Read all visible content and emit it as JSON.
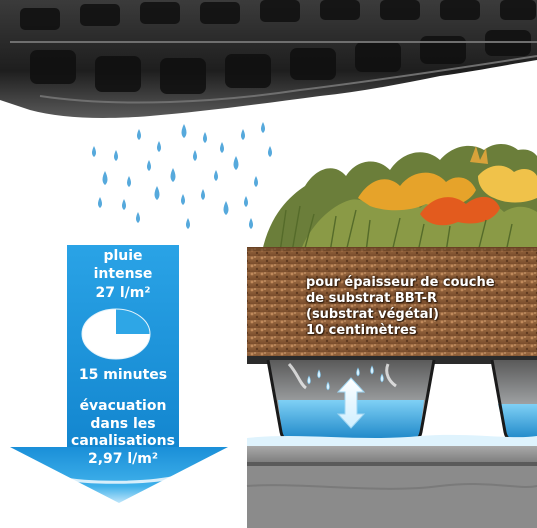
{
  "colors": {
    "accent_blue": "#1e96dc",
    "water_blue": "#3aa8e3",
    "raindrop_blue": "#56a9dc",
    "soil_brown": "#8a5a36",
    "tray_black": "#2b2b2b",
    "slab_grey": "#8f8f8f",
    "label_white": "#ffffff"
  },
  "rain_panel": {
    "line1": "pluie",
    "line2": "intense",
    "amount": "27 l/m²",
    "duration": "15 minutes",
    "pie_icon": "pie-chart-icon",
    "drain_line1": "évacuation",
    "drain_line2": "dans les",
    "drain_line3": "canalisations",
    "drain_amount": "2,97 l/m²"
  },
  "substrate_label": {
    "line1": "pour épaisseur de couche",
    "line2": "de substrat BBT-R",
    "line3": "(substrat végétal)",
    "line4": "10 centimètres"
  },
  "icons": {
    "raindrops": "raindrop-icon",
    "double_arrow": "double-arrow-icon",
    "down_arrow": "down-arrow-icon"
  }
}
